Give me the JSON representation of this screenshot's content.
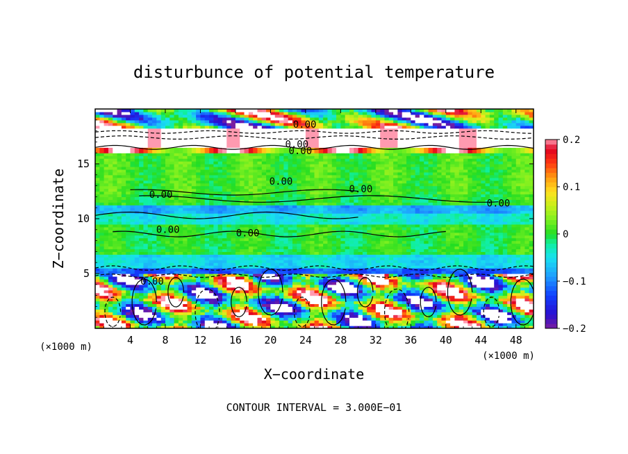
{
  "chart_data": {
    "type": "heatmap",
    "title": "disturbunce of potential temperature",
    "xlabel": "X−coordinate",
    "ylabel": "Z−coordinate",
    "x_unit": "(×1000 m)",
    "y_unit": "(×1000 m)",
    "xlim": [
      0,
      50
    ],
    "ylim": [
      0,
      20
    ],
    "x_ticks": [
      4,
      8,
      12,
      16,
      20,
      24,
      28,
      32,
      36,
      40,
      44,
      48
    ],
    "y_ticks": [
      5,
      10,
      15
    ],
    "contour_interval": "CONTOUR INTERVAL = 3.000E−01",
    "contour_labels": [
      "0.00",
      "0.00",
      "0.00",
      "0.00",
      "0.00",
      "0.00",
      "0.00",
      "0.00",
      "0.00",
      "0.00"
    ],
    "colorbar": {
      "range": [
        -0.2,
        0.2
      ],
      "tick_labels": [
        "0.2",
        "0.1",
        "0",
        "−0.1",
        "−0.2"
      ],
      "tick_values": [
        0.2,
        0.1,
        0,
        -0.1,
        -0.2
      ]
    },
    "bands": [
      {
        "z": [
          18.2,
          20.0
        ],
        "value": 0.02,
        "note": "top mixed"
      },
      {
        "z": [
          16.1,
          18.2
        ],
        "value": 0.25,
        "note": "white saturated"
      },
      {
        "z": [
          12.3,
          16.0
        ],
        "value": 0.01
      },
      {
        "z": [
          11.2,
          12.3
        ],
        "value": 0.0
      },
      {
        "z": [
          10.5,
          11.2
        ],
        "value": -0.08
      },
      {
        "z": [
          9.5,
          10.5
        ],
        "value": -0.04
      },
      {
        "z": [
          6.7,
          9.5
        ],
        "value": 0.0
      },
      {
        "z": [
          5.6,
          6.7
        ],
        "value": -0.05
      },
      {
        "z": [
          5.0,
          5.6
        ],
        "value": -0.12
      },
      {
        "z": [
          0.0,
          5.0
        ],
        "value": 0.0,
        "note": "turbulent"
      }
    ]
  }
}
